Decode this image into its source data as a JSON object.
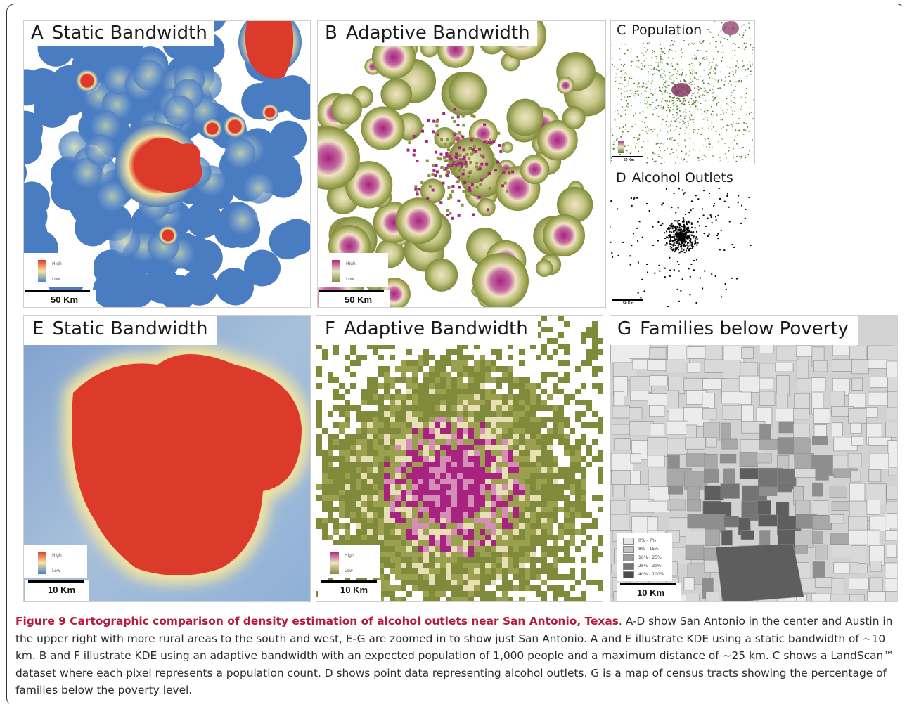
{
  "panels": {
    "A": {
      "letter": "A",
      "title": "Static Bandwidth",
      "legend_high": "High",
      "legend_low": "Low",
      "scale": "50 Km"
    },
    "B": {
      "letter": "B",
      "title": "Adaptive Bandwidth",
      "legend_high": "High",
      "legend_low": "Low",
      "scale": "50 Km"
    },
    "C": {
      "letter": "C",
      "title": "Population",
      "scale": "50 Km"
    },
    "D": {
      "letter": "D",
      "title": "Alcohol Outlets",
      "scale": "50 Km"
    },
    "E": {
      "letter": "E",
      "title": "Static Bandwidth",
      "legend_high": "High",
      "legend_low": "Low",
      "scale": "10 Km"
    },
    "F": {
      "letter": "F",
      "title": "Adaptive Bandwidth",
      "legend_high": "High",
      "legend_low": "Low",
      "scale": "10 Km"
    },
    "G": {
      "letter": "G",
      "title": "Families below Poverty",
      "scale": "10 Km",
      "legend": [
        "0% - 7%",
        "8% - 15%",
        "16% - 25%",
        "26% - 39%",
        "40% - 100%"
      ],
      "legend_colors": [
        "#e6e6e6",
        "#c4c4c4",
        "#9d9d9d",
        "#747474",
        "#4a4a4a"
      ]
    }
  },
  "colors": {
    "static_low": "#4a7cc1",
    "static_mid": "#f3e4a0",
    "static_high": "#dc3b2c",
    "adaptive_low": "#7f8a3a",
    "adaptive_mid": "#f0e2c4",
    "adaptive_high": "#a7237f"
  },
  "caption": {
    "title": "Figure 9 Cartographic comparison of density estimation of alcohol outlets near San Antonio, Texas",
    "body": ". A-D show San Antonio in the center and Austin in the upper right with more rural areas to the south and west, E-G are zoomed in to show just San Antonio. A and E illustrate KDE using a static bandwidth of ~10 km. B and F illustrate KDE using an adaptive bandwidth with an expected population of 1,000 people and a maximum distance of ~25 km. C shows a LandScan™ dataset where each pixel represents a population count. D shows point data representing alcohol outlets. G is a map of census tracts showing the percentage of families below the poverty level."
  }
}
